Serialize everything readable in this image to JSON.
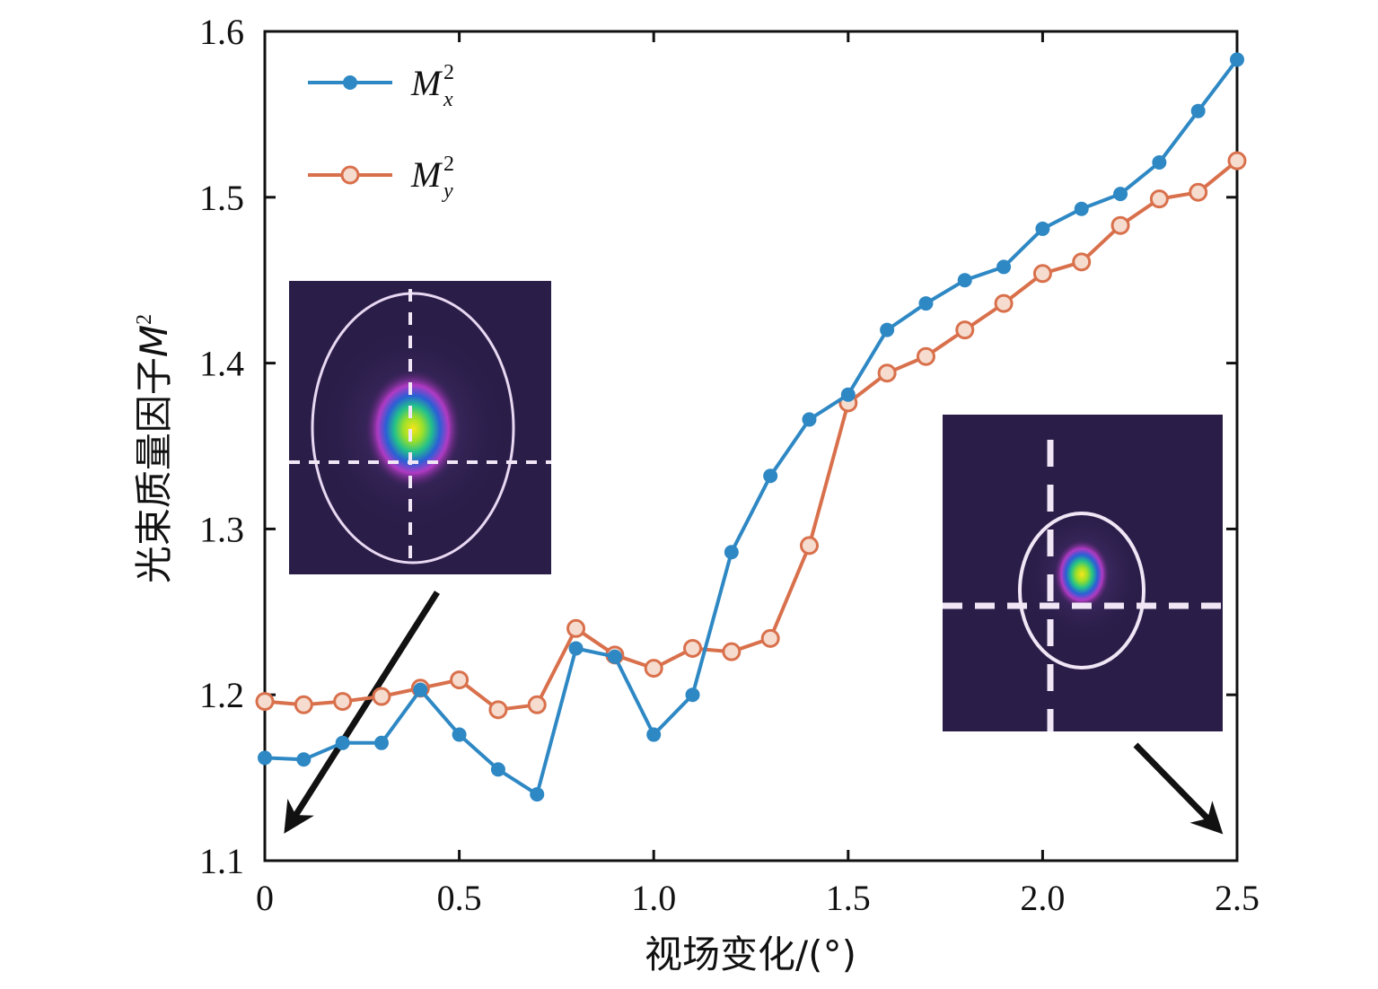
{
  "colors": {
    "mx": "#2e88c4",
    "my": "#d9704c",
    "inset_bg": "#2a1d48",
    "axis": "#111111"
  },
  "chart_data": {
    "type": "line",
    "xlabel": "视场变化/(°)",
    "ylabel": "光束质量因子",
    "ylabel_symbol": "M",
    "ylabel_sup": "2",
    "xlim": [
      0,
      2.5
    ],
    "ylim": [
      1.1,
      1.6
    ],
    "xticks": [
      "0",
      "0.5",
      "1.0",
      "1.5",
      "2.0",
      "2.5"
    ],
    "yticks": [
      "1.1",
      "1.2",
      "1.3",
      "1.4",
      "1.5",
      "1.6"
    ],
    "x": [
      0,
      0.1,
      0.2,
      0.3,
      0.4,
      0.5,
      0.6,
      0.7,
      0.8,
      0.9,
      1.0,
      1.1,
      1.2,
      1.3,
      1.4,
      1.5,
      1.6,
      1.7,
      1.8,
      1.9,
      2.0,
      2.1,
      2.2,
      2.3,
      2.4,
      2.5
    ],
    "series": [
      {
        "name": "M",
        "sup": "2",
        "sub": "x",
        "marker": "filled-circle",
        "values": [
          1.162,
          1.161,
          1.171,
          1.171,
          1.203,
          1.176,
          1.155,
          1.14,
          1.228,
          1.223,
          1.176,
          1.2,
          1.286,
          1.332,
          1.366,
          1.381,
          1.42,
          1.436,
          1.45,
          1.458,
          1.481,
          1.493,
          1.502,
          1.521,
          1.552,
          1.583
        ]
      },
      {
        "name": "M",
        "sup": "2",
        "sub": "y",
        "marker": "open-circle",
        "values": [
          1.196,
          1.194,
          1.196,
          1.199,
          1.204,
          1.209,
          1.191,
          1.194,
          1.24,
          1.224,
          1.216,
          1.228,
          1.226,
          1.234,
          1.29,
          1.376,
          1.394,
          1.404,
          1.42,
          1.436,
          1.454,
          1.461,
          1.483,
          1.499,
          1.503,
          1.522
        ]
      }
    ],
    "legend_position": "top-left",
    "insets": [
      {
        "name": "beam-profile-at-0",
        "points_to_x": 0
      },
      {
        "name": "beam-profile-at-2.5",
        "points_to_x": 2.5
      }
    ]
  }
}
